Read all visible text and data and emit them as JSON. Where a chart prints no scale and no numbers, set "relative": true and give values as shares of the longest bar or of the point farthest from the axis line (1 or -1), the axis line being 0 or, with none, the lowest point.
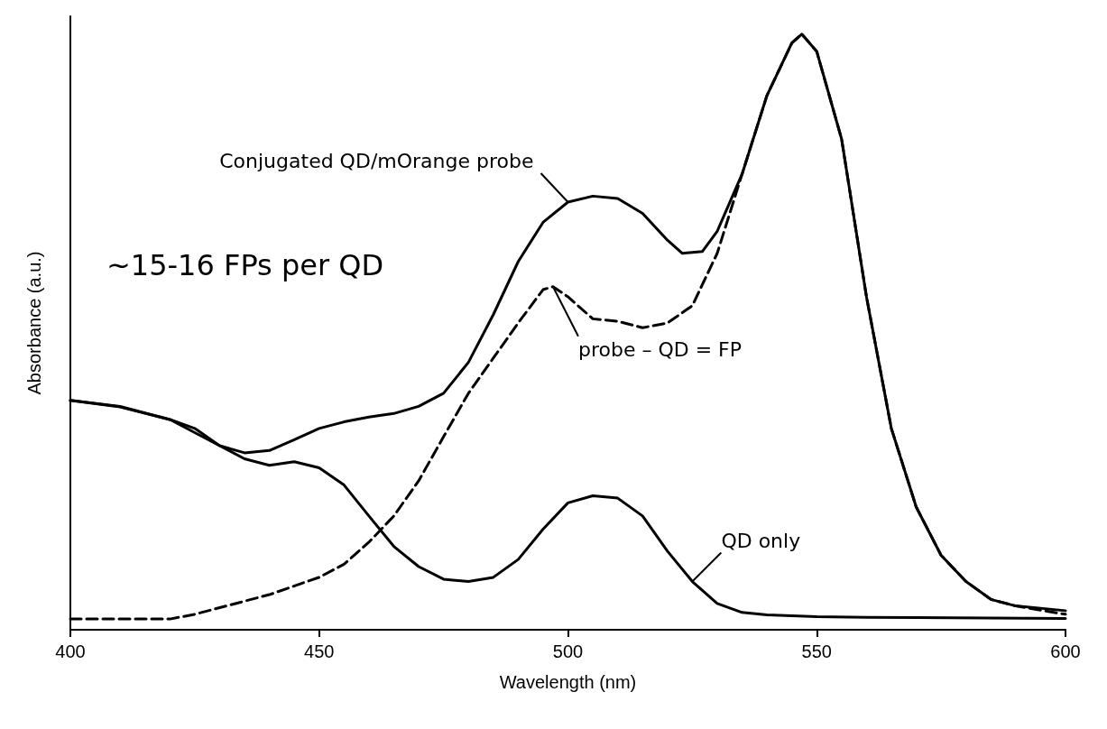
{
  "chart_data": {
    "type": "line",
    "relative": true,
    "xlabel": "Wavelength (nm)",
    "ylabel": "Absorbance (a.u.)",
    "xlim": [
      400,
      600
    ],
    "xticks": [
      400,
      450,
      500,
      550,
      600
    ],
    "grid": false,
    "marker": "none",
    "series": [
      {
        "color": "#000000",
        "line_style": "solid",
        "x": [
          400,
          410,
          420,
          425,
          430,
          435,
          440,
          445,
          450,
          455,
          460,
          465,
          470,
          475,
          480,
          485,
          490,
          495,
          500,
          505,
          510,
          515,
          520,
          523,
          527,
          530,
          535,
          540,
          545,
          547,
          550,
          555,
          560,
          565,
          570,
          575,
          580,
          585,
          590,
          600
        ],
        "values": [
          0.385,
          0.375,
          0.353,
          0.338,
          0.309,
          0.297,
          0.301,
          0.319,
          0.338,
          0.349,
          0.357,
          0.363,
          0.375,
          0.397,
          0.449,
          0.529,
          0.618,
          0.684,
          0.718,
          0.728,
          0.724,
          0.699,
          0.654,
          0.632,
          0.635,
          0.669,
          0.765,
          0.897,
          0.985,
          1.0,
          0.971,
          0.824,
          0.559,
          0.338,
          0.206,
          0.125,
          0.081,
          0.051,
          0.04,
          0.032
        ]
      },
      {
        "color": "#000000",
        "line_style": "dashed",
        "x": [
          400,
          410,
          420,
          425,
          430,
          440,
          450,
          455,
          460,
          465,
          470,
          475,
          480,
          485,
          490,
          495,
          497,
          500,
          505,
          510,
          515,
          520,
          525,
          530,
          535,
          540,
          545,
          547,
          550,
          555,
          560,
          565,
          570,
          575,
          580,
          585,
          590,
          600
        ],
        "values": [
          0.018,
          0.018,
          0.018,
          0.026,
          0.037,
          0.059,
          0.088,
          0.11,
          0.147,
          0.191,
          0.25,
          0.324,
          0.397,
          0.456,
          0.515,
          0.571,
          0.576,
          0.559,
          0.522,
          0.518,
          0.507,
          0.515,
          0.544,
          0.632,
          0.765,
          0.897,
          0.985,
          1.0,
          0.971,
          0.824,
          0.559,
          0.338,
          0.206,
          0.125,
          0.081,
          0.051,
          0.04,
          0.026
        ]
      },
      {
        "color": "#000000",
        "line_style": "solid",
        "x": [
          400,
          410,
          420,
          425,
          430,
          435,
          440,
          445,
          450,
          455,
          460,
          465,
          470,
          475,
          480,
          485,
          490,
          495,
          500,
          505,
          510,
          515,
          520,
          525,
          530,
          535,
          540,
          550,
          560,
          600
        ],
        "values": [
          0.385,
          0.374,
          0.353,
          0.331,
          0.309,
          0.287,
          0.276,
          0.282,
          0.272,
          0.243,
          0.191,
          0.14,
          0.106,
          0.085,
          0.081,
          0.088,
          0.118,
          0.169,
          0.213,
          0.225,
          0.221,
          0.191,
          0.132,
          0.081,
          0.044,
          0.029,
          0.025,
          0.022,
          0.021,
          0.019
        ]
      }
    ],
    "annotations": [
      {
        "text": "Conjugated QD/mOrange probe",
        "x": 500,
        "y": 0.718
      },
      {
        "text": "probe – QD = FP",
        "x": 497,
        "y": 0.576
      },
      {
        "text": "QD only",
        "x": 525,
        "y": 0.081
      },
      "~15-16 FPs per QD"
    ]
  }
}
